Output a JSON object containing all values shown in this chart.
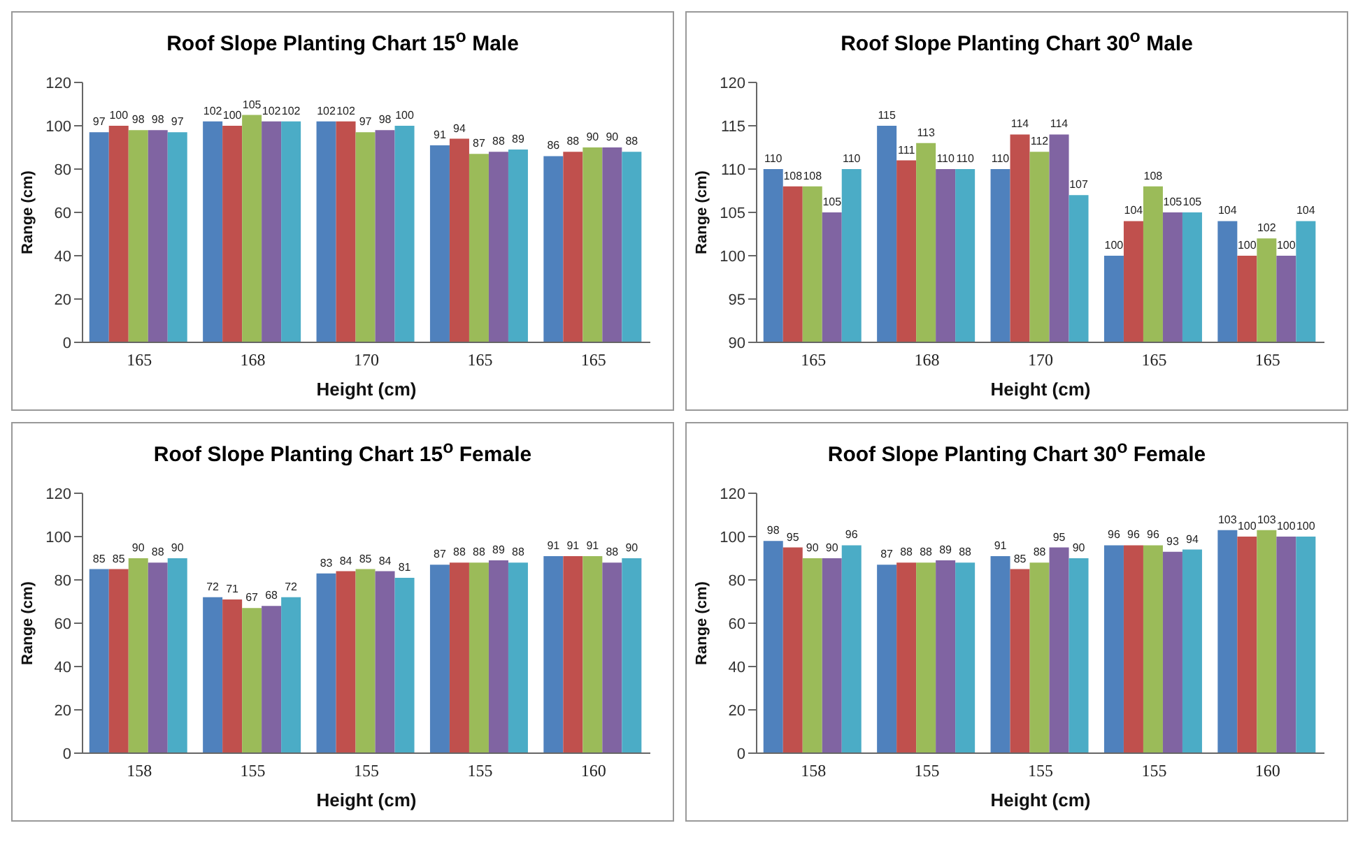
{
  "chart_data": [
    {
      "type": "bar",
      "title": "Roof Slope Planting Chart 15$^{o}$ Male",
      "xlabel": "Height (cm)",
      "ylabel": "Range (cm)",
      "categories": [
        "165",
        "168",
        "170",
        "165",
        "165"
      ],
      "ylim": [
        0,
        120
      ],
      "yticks": [
        0,
        20,
        40,
        60,
        80,
        100,
        120
      ],
      "data_labels": true,
      "series": [
        {
          "color": "#4f81bd",
          "values": [
            97,
            102,
            102,
            91,
            86
          ]
        },
        {
          "color": "#c0504d",
          "values": [
            100,
            100,
            102,
            94,
            88
          ]
        },
        {
          "color": "#9bbb59",
          "values": [
            98,
            105,
            97,
            87,
            90
          ]
        },
        {
          "color": "#8064a2",
          "values": [
            98,
            102,
            98,
            88,
            90
          ]
        },
        {
          "color": "#4bacc6",
          "values": [
            97,
            102,
            100,
            89,
            88
          ]
        }
      ]
    },
    {
      "type": "bar",
      "title": "Roof Slope Planting Chart 30$^{o}$ Male",
      "xlabel": "Height (cm)",
      "ylabel": "Range (cm)",
      "categories": [
        "165",
        "168",
        "170",
        "165",
        "165"
      ],
      "ylim": [
        90,
        120
      ],
      "yticks": [
        90,
        95,
        100,
        105,
        110,
        115,
        120
      ],
      "data_labels": true,
      "series": [
        {
          "color": "#4f81bd",
          "values": [
            110,
            115,
            110,
            100,
            104
          ]
        },
        {
          "color": "#c0504d",
          "values": [
            108,
            111,
            114,
            104,
            100
          ]
        },
        {
          "color": "#9bbb59",
          "values": [
            108,
            113,
            112,
            108,
            102
          ]
        },
        {
          "color": "#8064a2",
          "values": [
            105,
            110,
            114,
            105,
            100
          ]
        },
        {
          "color": "#4bacc6",
          "values": [
            110,
            110,
            107,
            105,
            104
          ]
        }
      ]
    },
    {
      "type": "bar",
      "title": "Roof Slope Planting Chart 15$^{o}$ Female",
      "xlabel": "Height (cm)",
      "ylabel": "Range (cm)",
      "categories": [
        "158",
        "155",
        "155",
        "155",
        "160"
      ],
      "ylim": [
        0,
        120
      ],
      "yticks": [
        0,
        20,
        40,
        60,
        80,
        100,
        120
      ],
      "data_labels": true,
      "series": [
        {
          "color": "#4f81bd",
          "values": [
            85,
            72,
            83,
            87,
            91
          ]
        },
        {
          "color": "#c0504d",
          "values": [
            85,
            71,
            84,
            88,
            91
          ]
        },
        {
          "color": "#9bbb59",
          "values": [
            90,
            67,
            85,
            88,
            91
          ]
        },
        {
          "color": "#8064a2",
          "values": [
            88,
            68,
            84,
            89,
            88
          ]
        },
        {
          "color": "#4bacc6",
          "values": [
            90,
            72,
            81,
            88,
            90
          ]
        }
      ]
    },
    {
      "type": "bar",
      "title": "Roof Slope Planting Chart 30$^{o}$ Female",
      "xlabel": "Height (cm)",
      "ylabel": "Range (cm)",
      "categories": [
        "158",
        "155",
        "155",
        "155",
        "160"
      ],
      "ylim": [
        0,
        120
      ],
      "yticks": [
        0,
        20,
        40,
        60,
        80,
        100,
        120
      ],
      "data_labels": true,
      "series": [
        {
          "color": "#4f81bd",
          "values": [
            98,
            87,
            91,
            96,
            103
          ]
        },
        {
          "color": "#c0504d",
          "values": [
            95,
            88,
            85,
            96,
            100
          ]
        },
        {
          "color": "#9bbb59",
          "values": [
            90,
            88,
            88,
            96,
            103
          ]
        },
        {
          "color": "#8064a2",
          "values": [
            90,
            89,
            95,
            93,
            100
          ]
        },
        {
          "color": "#4bacc6",
          "values": [
            96,
            88,
            90,
            94,
            100
          ]
        }
      ]
    }
  ]
}
